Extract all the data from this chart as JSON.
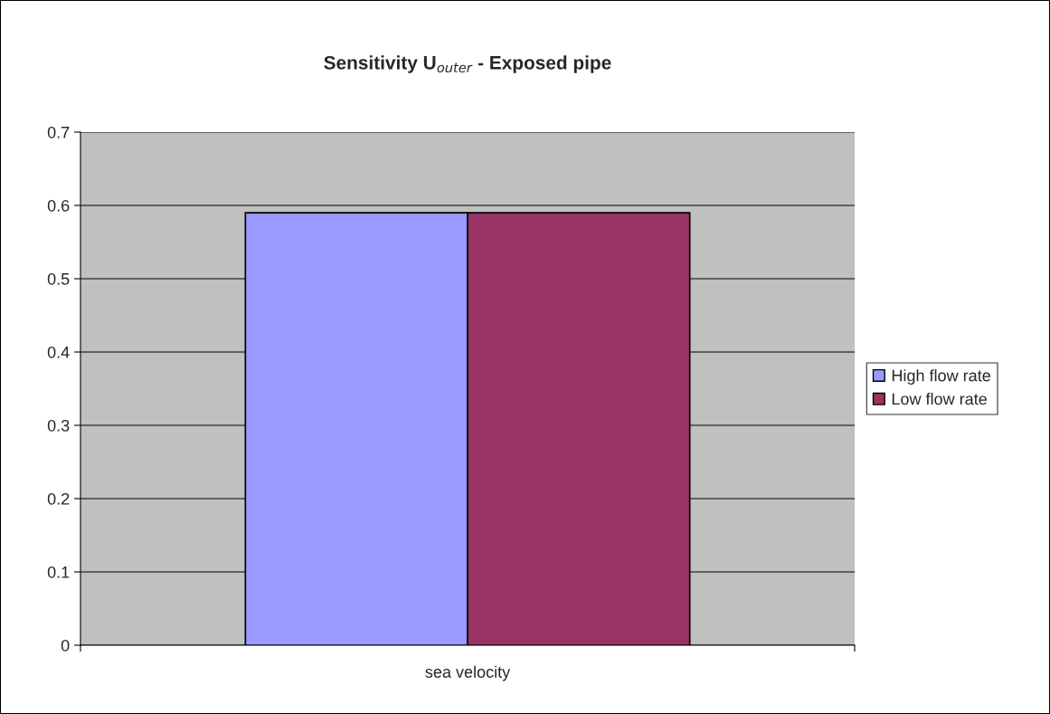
{
  "chart_data": {
    "type": "bar",
    "title": "Sensitivity U$_{outer}$ - Exposed pipe",
    "categories": [
      "sea velocity"
    ],
    "series": [
      {
        "name": "High flow rate",
        "color": "#9999ff",
        "values": [
          0.59
        ]
      },
      {
        "name": "Low flow rate",
        "color": "#993366",
        "values": [
          0.59
        ]
      }
    ],
    "ylim": [
      0,
      0.7
    ],
    "yticks": [
      0,
      0.1,
      0.2,
      0.3,
      0.4,
      0.5,
      0.6,
      0.7
    ],
    "grid": "y",
    "legend": "right"
  }
}
